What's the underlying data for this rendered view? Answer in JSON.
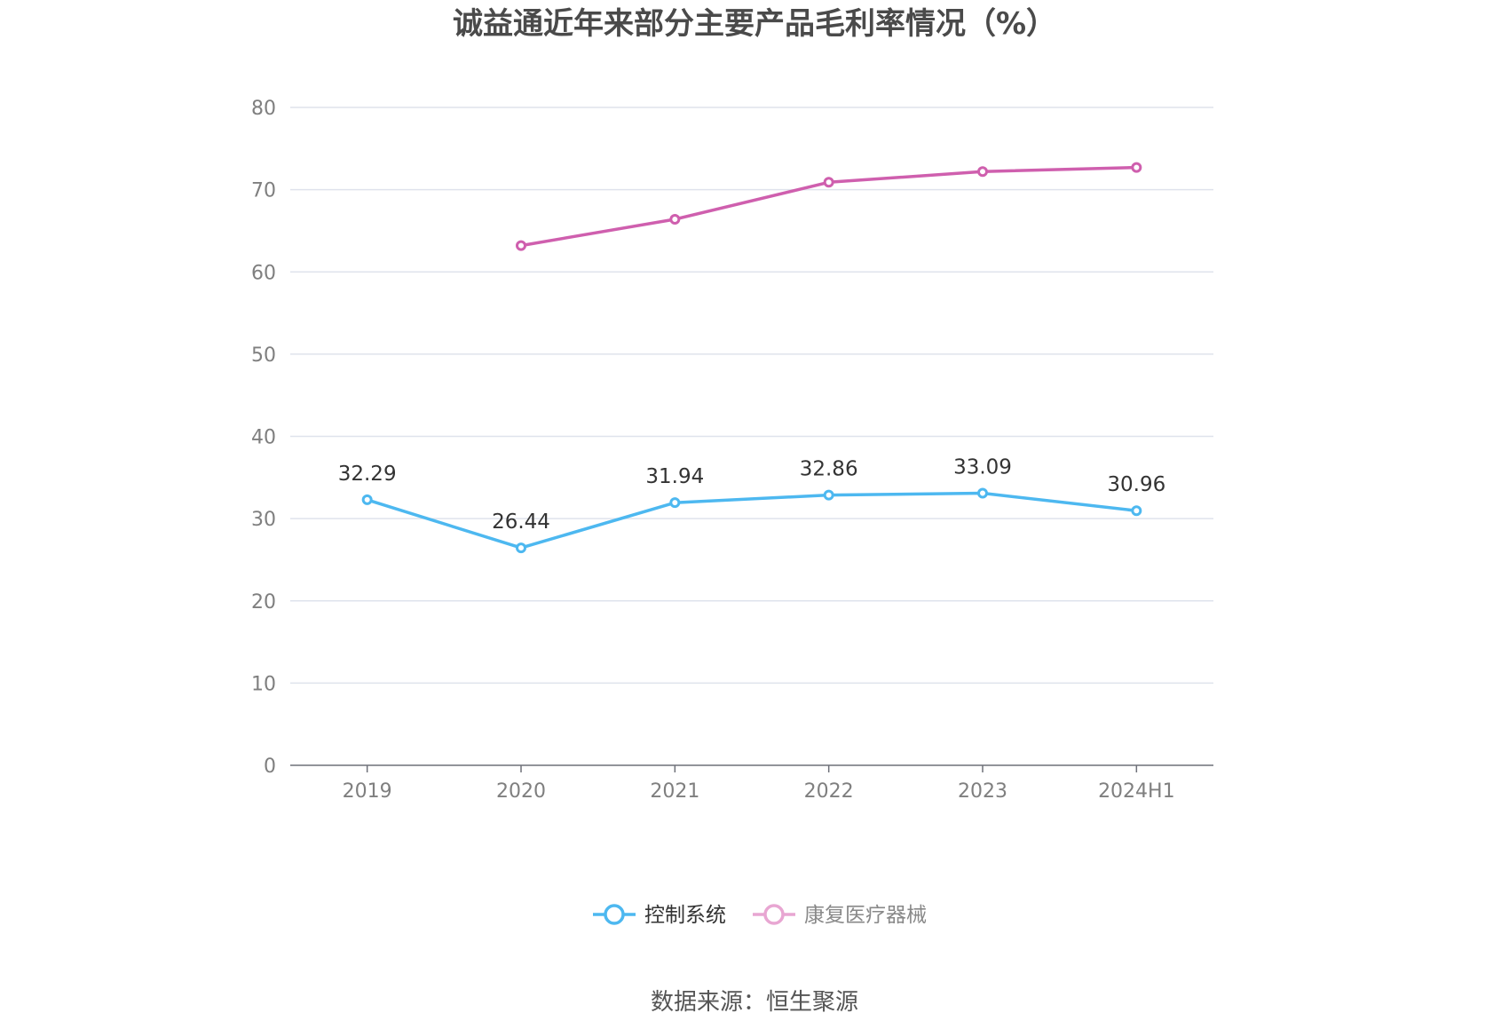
{
  "chart_data": {
    "type": "line",
    "title": "诚益通近年来部分主要产品毛利率情况（%）",
    "categories": [
      "2019",
      "2020",
      "2021",
      "2022",
      "2023",
      "2024H1"
    ],
    "ylim": [
      0,
      80
    ],
    "yticks": [
      0,
      10,
      20,
      30,
      40,
      50,
      60,
      70,
      80
    ],
    "grid": true,
    "legend_position": "bottom-center",
    "series": [
      {
        "name": "控制系统",
        "color": "#4db8f0",
        "values": [
          32.29,
          26.44,
          31.94,
          32.86,
          33.09,
          30.96
        ],
        "labels": [
          "32.29",
          "26.44",
          "31.94",
          "32.86",
          "33.09",
          "30.96"
        ],
        "show_labels": true
      },
      {
        "name": "康复医疗器械",
        "color": "#cf5fae",
        "legend_color": "#e8a6d2",
        "values": [
          null,
          63.2,
          66.4,
          70.9,
          72.2,
          72.7
        ],
        "show_labels": false
      }
    ]
  },
  "source": "数据来源：恒生聚源"
}
